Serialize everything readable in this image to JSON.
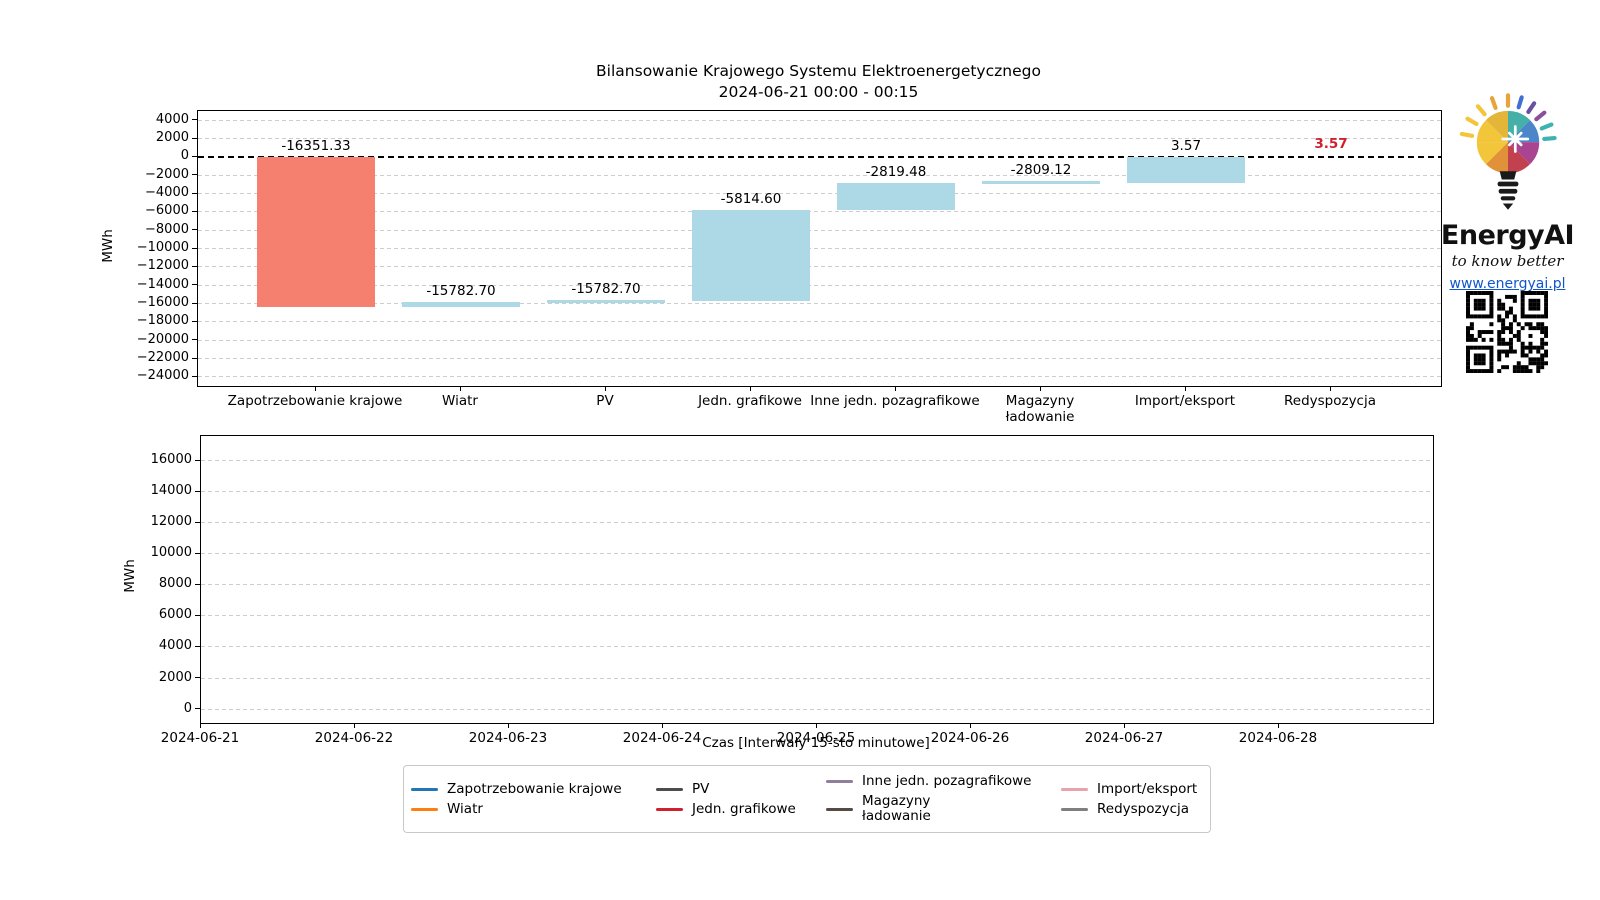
{
  "branding": {
    "name": "EnergyAI",
    "tagline": "to know better",
    "url": "www.energyai.pl",
    "logo": "colorful-lightbulb-with-rays"
  },
  "chart_data": [
    {
      "type": "bar",
      "subtype": "waterfall",
      "title": "Bilansowanie Krajowego Systemu Elektroenergetycznego",
      "subtitle": "2024-06-21 00:00 - 00:15",
      "ylabel": "MWh",
      "xlabel": "",
      "ylim": [
        -25000,
        5000
      ],
      "yticks": [
        4000,
        2000,
        0,
        -2000,
        -4000,
        -6000,
        -8000,
        -10000,
        -12000,
        -14000,
        -16000,
        -18000,
        -20000,
        -22000,
        -24000
      ],
      "grid": "dashed-horizontal",
      "zero_line": "black-dashed",
      "categories": [
        "Zapotrzebowanie krajowe",
        "Wiatr",
        "PV",
        "Jedn. grafikowe",
        "Inne jedn. pozagrafikowe",
        "Magazyny\nładowanie",
        "Import/eksport",
        "Redyspozycja"
      ],
      "bars": [
        {
          "category": "Zapotrzebowanie krajowe",
          "from": 0,
          "to": -16351.33,
          "label": "-16351.33",
          "color": "#f6806f",
          "label_color": "#000000",
          "label_bold": false,
          "show_bar": true
        },
        {
          "category": "Wiatr",
          "from": -16351.33,
          "to": -15782.7,
          "label": "-15782.70",
          "color": "#add8e6",
          "label_color": "#000000",
          "label_bold": false,
          "show_bar": true
        },
        {
          "category": "PV",
          "from": -15782.7,
          "to": -15782.7,
          "label": "-15782.70",
          "color": "#add8e6",
          "label_color": "#000000",
          "label_bold": false,
          "show_bar": true
        },
        {
          "category": "Jedn. grafikowe",
          "from": -15782.7,
          "to": -5814.6,
          "label": "-5814.60",
          "color": "#add8e6",
          "label_color": "#000000",
          "label_bold": false,
          "show_bar": true
        },
        {
          "category": "Inne jedn. pozagrafikowe",
          "from": -5814.6,
          "to": -2819.48,
          "label": "-2819.48",
          "color": "#add8e6",
          "label_color": "#000000",
          "label_bold": false,
          "show_bar": true
        },
        {
          "category": "Magazyny\nładowanie",
          "from": -2819.48,
          "to": -2809.12,
          "label": "-2809.12",
          "color": "#add8e6",
          "label_color": "#000000",
          "label_bold": false,
          "show_bar": true
        },
        {
          "category": "Import/eksport",
          "from": -2809.12,
          "to": 3.57,
          "label": "3.57",
          "color": "#add8e6",
          "label_color": "#000000",
          "label_bold": false,
          "show_bar": true
        },
        {
          "category": "Redyspozycja",
          "from": 3.57,
          "to": 3.57,
          "label": "3.57",
          "color": "#add8e6",
          "label_color": "#d01f2e",
          "label_bold": true,
          "show_bar": false
        }
      ]
    },
    {
      "type": "line",
      "title": "",
      "ylabel": "MWh",
      "xlabel": "Czas [Interwały 15-sto minutowe]",
      "ylim": [
        -900,
        17600
      ],
      "yticks": [
        16000,
        14000,
        12000,
        10000,
        8000,
        6000,
        4000,
        2000,
        0
      ],
      "grid": "dashed-horizontal",
      "xticks": [
        "2024-06-21",
        "2024-06-22",
        "2024-06-23",
        "2024-06-24",
        "2024-06-25",
        "2024-06-26",
        "2024-06-27",
        "2024-06-28"
      ],
      "x_span_days": 8,
      "series": []
    }
  ],
  "legend": {
    "items": [
      {
        "label": "Zapotrzebowanie krajowe",
        "color": "#2077b4"
      },
      {
        "label": "Wiatr",
        "color": "#ff7f0e"
      },
      {
        "label": "PV",
        "color": "#4d4d4d"
      },
      {
        "label": "Jedn. grafikowe",
        "color": "#d0202f"
      },
      {
        "label": "Inne jedn. pozagrafikowe",
        "color": "#8f7f9c"
      },
      {
        "label": "Magazyny\nładowanie",
        "color": "#564a45"
      },
      {
        "label": "Import/eksport",
        "color": "#e8a2ab"
      },
      {
        "label": "Redyspozycja",
        "color": "#7f7f7f"
      }
    ]
  }
}
